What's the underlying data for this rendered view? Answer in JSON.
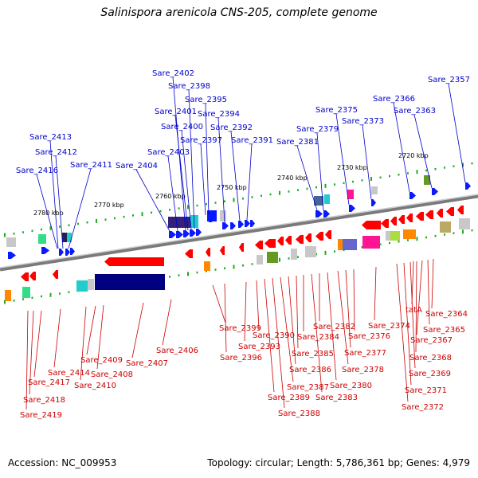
{
  "title": "Salinispora arenicola CNS-205, complete genome",
  "accession_text": "Accession: NC_009953",
  "summary_text": "Topology: circular; Length: 5,786,361 bp; Genes: 4,979",
  "colors": {
    "forward_label": "#0000cc",
    "reverse_label": "#cc0000",
    "tick": "#22aa22",
    "backbone": "#999999"
  },
  "scale_labels": [
    "2780 kbp",
    "2770 kbp",
    "2760 kbp",
    "2750 kbp",
    "2740 kbp",
    "2730 kbp",
    "2720 kbp"
  ],
  "forward_genes": [
    "Sare_2416",
    "Sare_2413",
    "Sare_2412",
    "Sare_2411",
    "Sare_2404",
    "Sare_2403",
    "Sare_2402",
    "Sare_2401",
    "Sare_2400",
    "Sare_2398",
    "Sare_2397",
    "Sare_2395",
    "Sare_2394",
    "Sare_2392",
    "Sare_2391",
    "Sare_2381",
    "Sare_2379",
    "Sare_2375",
    "Sare_2373",
    "Sare_2366",
    "Sare_2363",
    "Sare_2357"
  ],
  "reverse_genes": [
    "Sare_2419",
    "Sare_2418",
    "Sare_2417",
    "Sare_2414",
    "Sare_2410",
    "Sare_2409",
    "Sare_2408",
    "Sare_2407",
    "Sare_2406",
    "Sare_2399",
    "Sare_2396",
    "Sare_2393",
    "Sare_2390",
    "Sare_2389",
    "Sare_2388",
    "Sare_2387",
    "Sare_2386",
    "Sare_2385",
    "Sare_2384",
    "Sare_2383",
    "Sare_2382",
    "Sare_2380",
    "Sare_2378",
    "Sare_2377",
    "Sare_2376",
    "Sare_2374",
    "Sare_2372",
    "Sare_2371",
    "Sare_2369",
    "Sare_2368",
    "Sare_2367",
    "Sare_2365",
    "Sare_2364",
    "tatA"
  ]
}
